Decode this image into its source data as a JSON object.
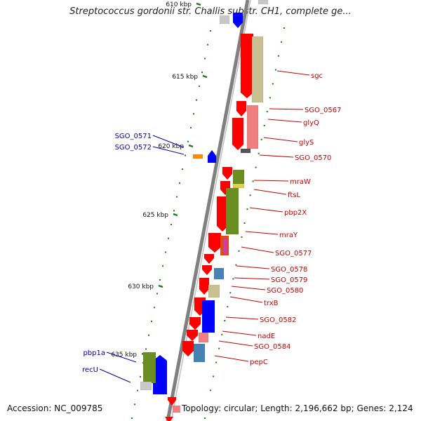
{
  "title": "Streptococcus gordonii str. Challis substr. CH1, complete ge...",
  "accession": "Accession: NC_009785",
  "summary": "Topology: circular; Length: 2,196,662 bp; Genes: 2,124",
  "ticks": [
    {
      "label": "610 kbp"
    },
    {
      "label": "615 kbp"
    },
    {
      "label": "620 kbp"
    },
    {
      "label": "625 kbp"
    },
    {
      "label": "630 kbp"
    },
    {
      "label": "635 kbp"
    }
  ],
  "genes_right": [
    {
      "label": "sgc"
    },
    {
      "label": "SGO_0567"
    },
    {
      "label": "glyQ"
    },
    {
      "label": "glyS"
    },
    {
      "label": "SGO_0570"
    },
    {
      "label": "mraW"
    },
    {
      "label": "ftsL"
    },
    {
      "label": "pbp2X"
    },
    {
      "label": "mraY"
    },
    {
      "label": "SGO_0577"
    },
    {
      "label": "SGO_0578"
    },
    {
      "label": "SGO_0579"
    },
    {
      "label": "SGO_0580"
    },
    {
      "label": "trxB"
    },
    {
      "label": "SGO_0582"
    },
    {
      "label": "nadE"
    },
    {
      "label": "SGO_0584"
    },
    {
      "label": "pepC"
    }
  ],
  "genes_left": [
    {
      "label": "SGO_0571"
    },
    {
      "label": "SGO_0572"
    },
    {
      "label": "pbp1a"
    },
    {
      "label": "recU"
    }
  ],
  "colors": {
    "forward_gene": "#ff0000",
    "reverse_gene": "#0000ff",
    "right_label": "#cc0000",
    "left_label": "#0000aa",
    "tick": "#1a7a1a",
    "backbone": "#808080"
  }
}
